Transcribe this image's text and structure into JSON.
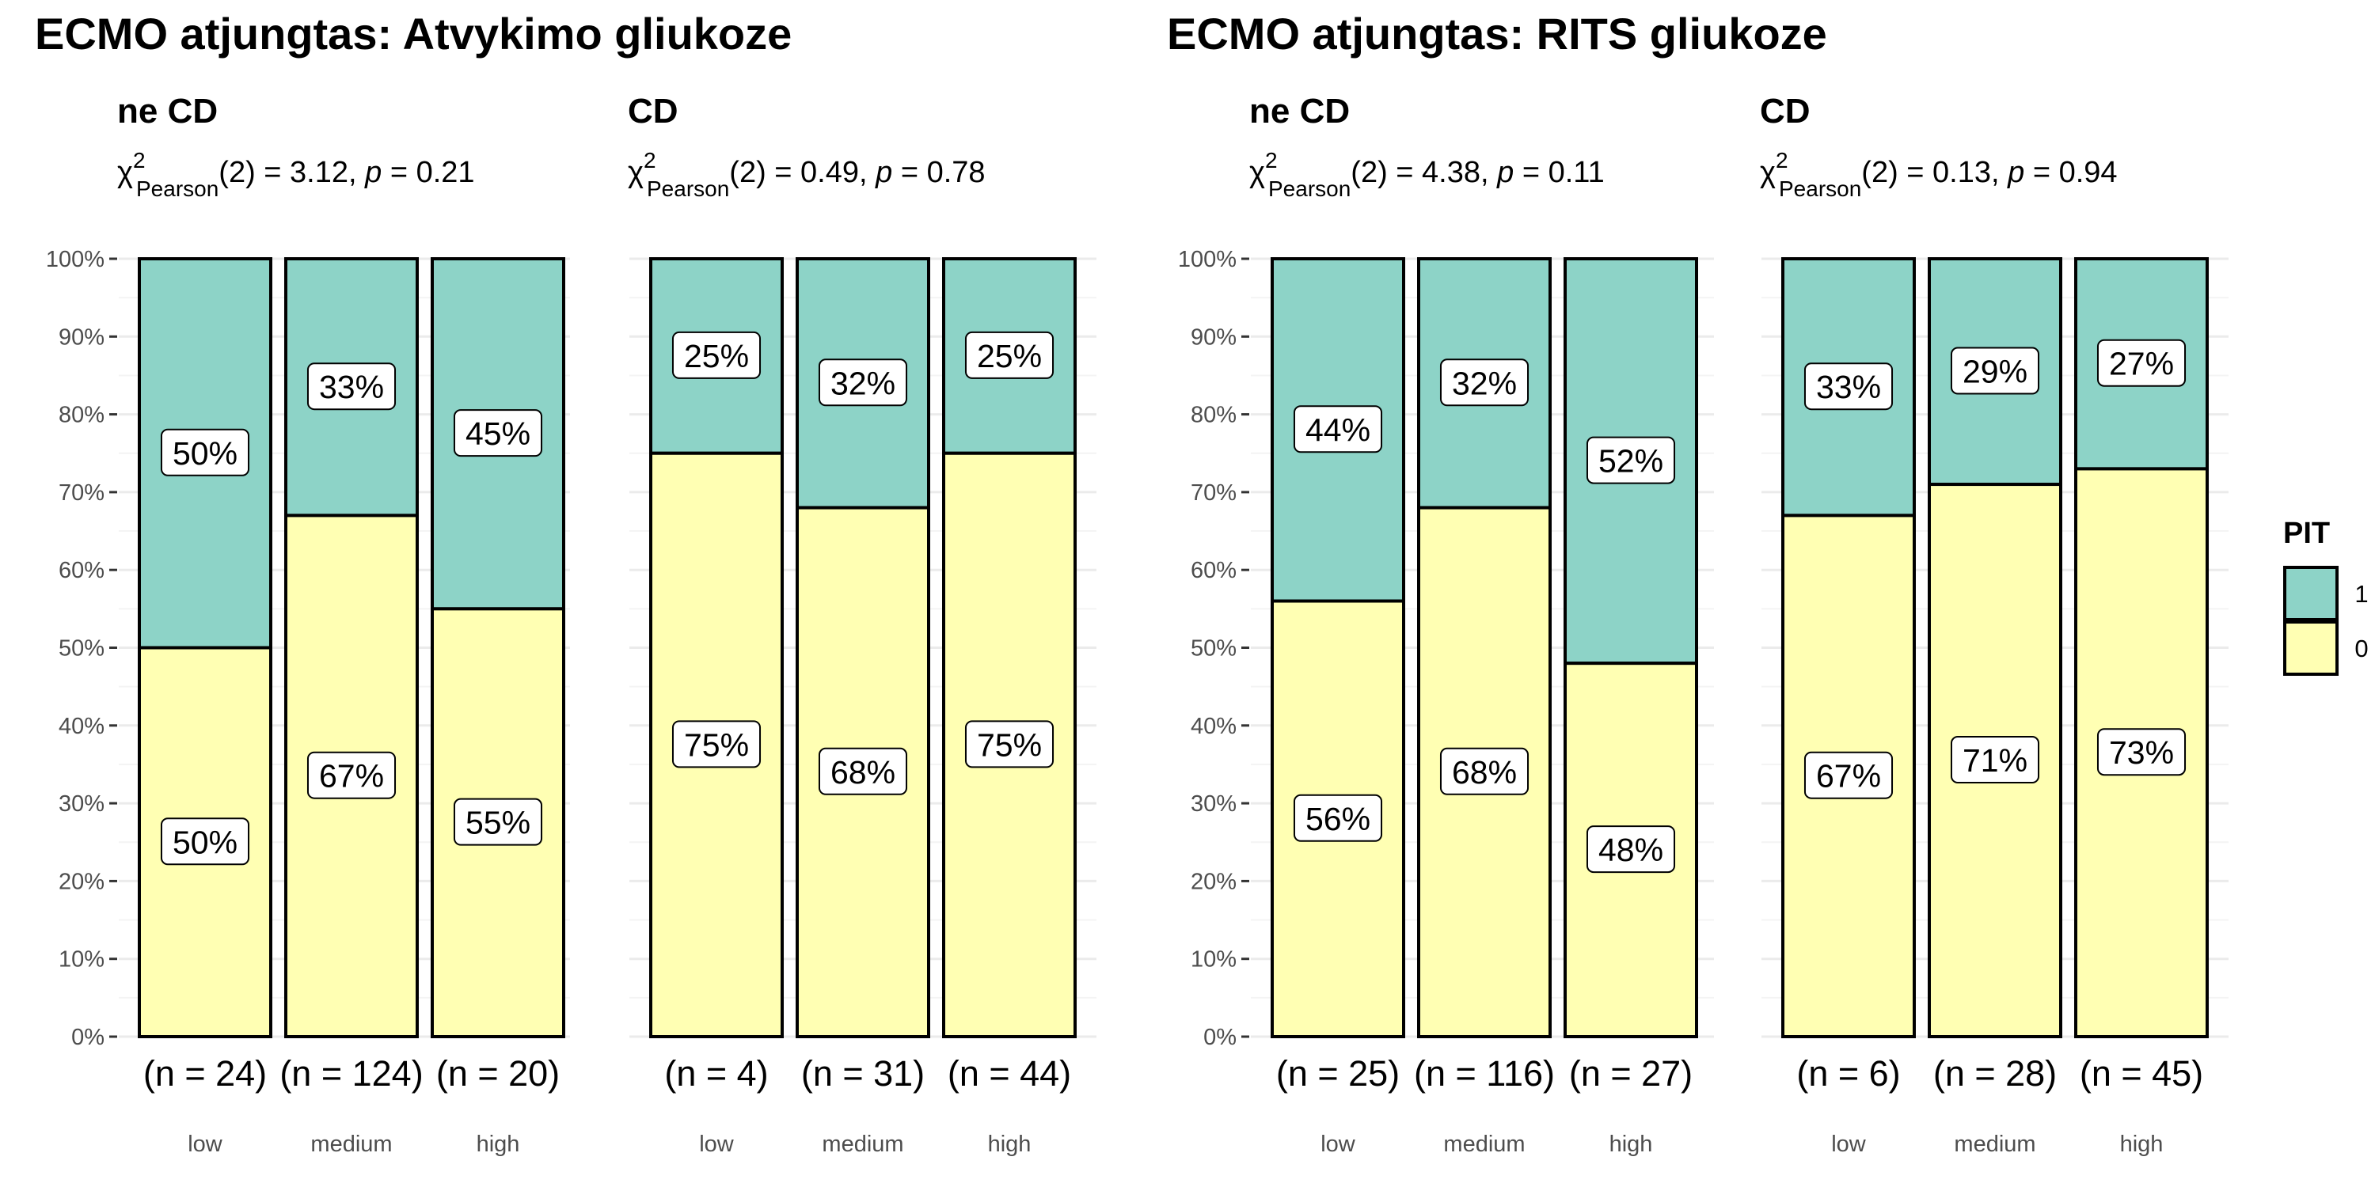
{
  "chart_data": [
    {
      "type": "bar",
      "stacked": true,
      "title": "ECMO atjungtas: Atvykimo gliukoze",
      "panels": [
        {
          "title": "ne CD",
          "stat": {
            "value": "3.12",
            "p": "0.21",
            "df": "2"
          },
          "categories": [
            "low",
            "medium",
            "high"
          ],
          "counts": [
            "(n = 24)",
            "(n = 124)",
            "(n = 20)"
          ],
          "series": [
            {
              "name": "0",
              "values": [
                50,
                67,
                55
              ]
            },
            {
              "name": "1",
              "values": [
                50,
                33,
                45
              ]
            }
          ]
        },
        {
          "title": "CD",
          "stat": {
            "value": "0.49",
            "p": "0.78",
            "df": "2"
          },
          "categories": [
            "low",
            "medium",
            "high"
          ],
          "counts": [
            "(n = 4)",
            "(n = 31)",
            "(n = 44)"
          ],
          "series": [
            {
              "name": "0",
              "values": [
                75,
                68,
                75
              ]
            },
            {
              "name": "1",
              "values": [
                25,
                32,
                25
              ]
            }
          ]
        }
      ]
    },
    {
      "type": "bar",
      "stacked": true,
      "title": "ECMO atjungtas: RITS gliukoze",
      "panels": [
        {
          "title": "ne CD",
          "stat": {
            "value": "4.38",
            "p": "0.11",
            "df": "2"
          },
          "categories": [
            "low",
            "medium",
            "high"
          ],
          "counts": [
            "(n = 25)",
            "(n = 116)",
            "(n = 27)"
          ],
          "series": [
            {
              "name": "0",
              "values": [
                56,
                68,
                48
              ]
            },
            {
              "name": "1",
              "values": [
                44,
                32,
                52
              ]
            }
          ]
        },
        {
          "title": "CD",
          "stat": {
            "value": "0.13",
            "p": "0.94",
            "df": "2"
          },
          "categories": [
            "low",
            "medium",
            "high"
          ],
          "counts": [
            "(n = 6)",
            "(n = 28)",
            "(n = 45)"
          ],
          "series": [
            {
              "name": "0",
              "values": [
                67,
                71,
                73
              ]
            },
            {
              "name": "1",
              "values": [
                33,
                29,
                27
              ]
            }
          ]
        }
      ]
    }
  ],
  "y_axis": {
    "ticks": [
      "0%",
      "10%",
      "20%",
      "30%",
      "40%",
      "50%",
      "60%",
      "70%",
      "80%",
      "90%",
      "100%"
    ],
    "ylim": [
      0,
      100
    ]
  },
  "stat_label": {
    "chi": "χ",
    "sup": "2",
    "sub": "Pearson",
    "p_letter": "p"
  },
  "legend": {
    "title": "PIT",
    "entries": [
      {
        "label": "1",
        "color": "#8dd3c7"
      },
      {
        "label": "0",
        "color": "#ffffb3"
      }
    ]
  },
  "colors": {
    "0": "#ffffb3",
    "1": "#8dd3c7",
    "grid": "#ebebeb",
    "border": "#000000"
  }
}
